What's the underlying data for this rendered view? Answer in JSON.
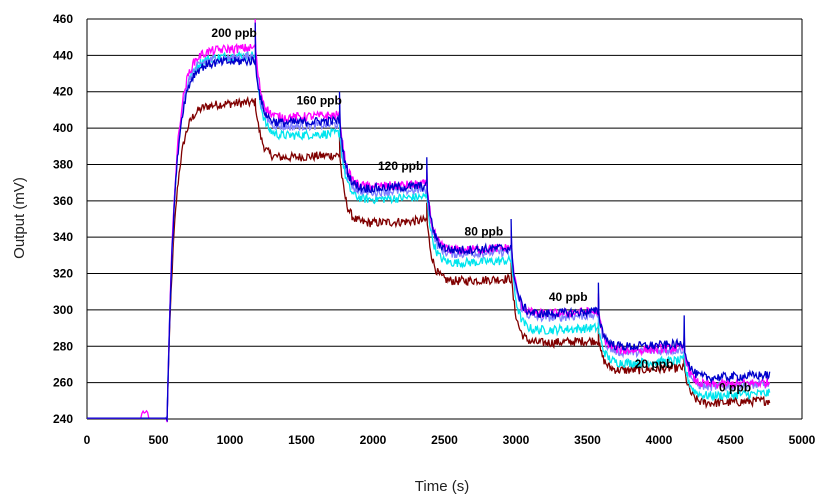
{
  "chart_data": {
    "type": "line",
    "xlabel": "Time (s)",
    "ylabel": "Output (mV)",
    "xlim": [
      0,
      5000
    ],
    "ylim": [
      240,
      460
    ],
    "xticks": [
      0,
      500,
      1000,
      1500,
      2000,
      2500,
      3000,
      3500,
      4000,
      4500,
      5000
    ],
    "yticks": [
      240,
      260,
      280,
      300,
      320,
      340,
      360,
      380,
      400,
      420,
      440,
      460
    ],
    "grid": "horizontal",
    "legend": "none",
    "annotations": [
      {
        "text": "200 ppb",
        "x": 870,
        "y": 450
      },
      {
        "text": "160 ppb",
        "x": 1465,
        "y": 413
      },
      {
        "text": "120 ppb",
        "x": 2035,
        "y": 377
      },
      {
        "text": "80 ppb",
        "x": 2640,
        "y": 341
      },
      {
        "text": "40 ppb",
        "x": 3230,
        "y": 305
      },
      {
        "text": "20 ppb",
        "x": 3830,
        "y": 268
      },
      {
        "text": "0 ppb",
        "x": 4420,
        "y": 255
      }
    ],
    "step_times": [
      560,
      1180,
      1770,
      2380,
      2970,
      3580,
      4180,
      4780
    ],
    "series": [
      {
        "color": "#ff00ff",
        "levels": [
          442,
          405,
          367,
          332,
          297,
          277,
          258
        ],
        "spike": 460
      },
      {
        "color": "#0000cc",
        "levels": [
          435,
          402,
          366,
          332,
          297,
          279,
          262
        ],
        "spike": 458
      },
      {
        "color": "#7f7fff",
        "levels": [
          437,
          400,
          364,
          330,
          295,
          276,
          257
        ],
        "spike": 455
      },
      {
        "color": "#00e5ee",
        "levels": [
          438,
          395,
          360,
          325,
          288,
          270,
          252
        ],
        "spike": 452
      },
      {
        "color": "#800000",
        "levels": [
          412,
          383,
          347,
          315,
          281,
          266,
          248
        ],
        "spike": 416
      }
    ]
  }
}
